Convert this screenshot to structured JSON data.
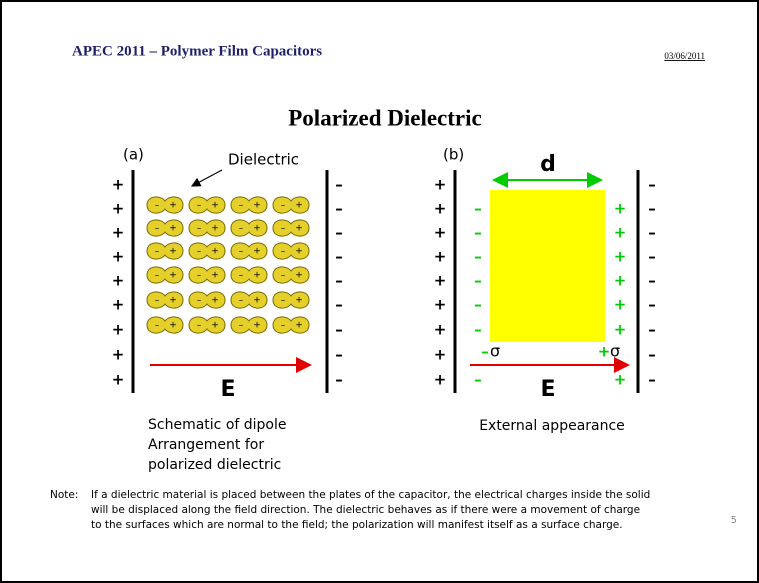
{
  "header": {
    "title": "APEC 2011 – Polymer Film Capacitors",
    "date": "03/06/2011"
  },
  "title": "Polarized Dielectric",
  "symbols": {
    "plus": "+",
    "minus": "–"
  },
  "field": "E",
  "panel_a": {
    "label": "(a)",
    "annotation": "Dielectric",
    "caption": [
      "Schematic of dipole",
      "Arrangement for",
      "polarized dielectric"
    ]
  },
  "panel_b": {
    "label": "(b)",
    "dimension": "d",
    "surface_charge": "σ",
    "caption": "External appearance"
  },
  "note": {
    "label": "Note:",
    "lines": [
      "If a dielectric material is placed between the plates of the capacitor, the electrical charges inside the solid",
      "will be displaced along the field direction.  The dielectric behaves as if there were a movement of charge",
      "to the surfaces which are normal to the field; the polarization will manifest itself as a surface charge."
    ]
  },
  "page_number": "5"
}
